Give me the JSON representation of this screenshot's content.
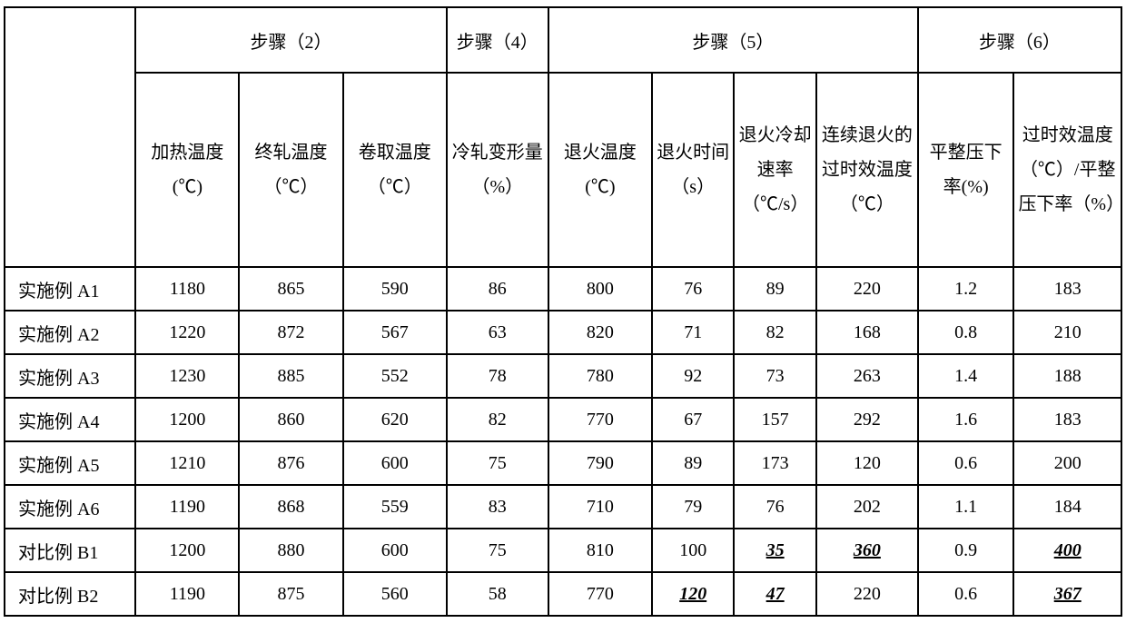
{
  "table": {
    "border_color": "#000000",
    "background_color": "#ffffff",
    "text_color": "#000000",
    "header_groups": {
      "g2": "步骤（2）",
      "g4": "步骤（4）",
      "g5": "步骤（5）",
      "g6": "步骤（6）"
    },
    "sub_headers": {
      "c1": "加热温度(℃)",
      "c2": "终轧温度（℃）",
      "c3": "卷取温度（℃）",
      "c4": "冷轧变形量（%）",
      "c5": "退火温度(℃)",
      "c6": "退火时间（s）",
      "c7": "退火冷却速率（℃/s）",
      "c8": "连续退火的过时效温度（℃）",
      "c9": "平整压下率(%)",
      "c10": "过时效温度（℃）/平整压下率（%）"
    },
    "rows": [
      {
        "label": "实施例 A1",
        "v": [
          "1180",
          "865",
          "590",
          "86",
          "800",
          "76",
          "89",
          "220",
          "1.2",
          "183"
        ],
        "em": []
      },
      {
        "label": "实施例 A2",
        "v": [
          "1220",
          "872",
          "567",
          "63",
          "820",
          "71",
          "82",
          "168",
          "0.8",
          "210"
        ],
        "em": []
      },
      {
        "label": "实施例 A3",
        "v": [
          "1230",
          "885",
          "552",
          "78",
          "780",
          "92",
          "73",
          "263",
          "1.4",
          "188"
        ],
        "em": []
      },
      {
        "label": "实施例 A4",
        "v": [
          "1200",
          "860",
          "620",
          "82",
          "770",
          "67",
          "157",
          "292",
          "1.6",
          "183"
        ],
        "em": []
      },
      {
        "label": "实施例 A5",
        "v": [
          "1210",
          "876",
          "600",
          "75",
          "790",
          "89",
          "173",
          "120",
          "0.6",
          "200"
        ],
        "em": []
      },
      {
        "label": "实施例 A6",
        "v": [
          "1190",
          "868",
          "559",
          "83",
          "710",
          "79",
          "76",
          "202",
          "1.1",
          "184"
        ],
        "em": []
      },
      {
        "label": "对比例 B1",
        "v": [
          "1200",
          "880",
          "600",
          "75",
          "810",
          "100",
          "35",
          "360",
          "0.9",
          "400"
        ],
        "em": [
          6,
          7,
          9
        ]
      },
      {
        "label": "对比例 B2",
        "v": [
          "1190",
          "875",
          "560",
          "58",
          "770",
          "120",
          "47",
          "220",
          "0.6",
          "367"
        ],
        "em": [
          5,
          6,
          9
        ]
      }
    ]
  }
}
